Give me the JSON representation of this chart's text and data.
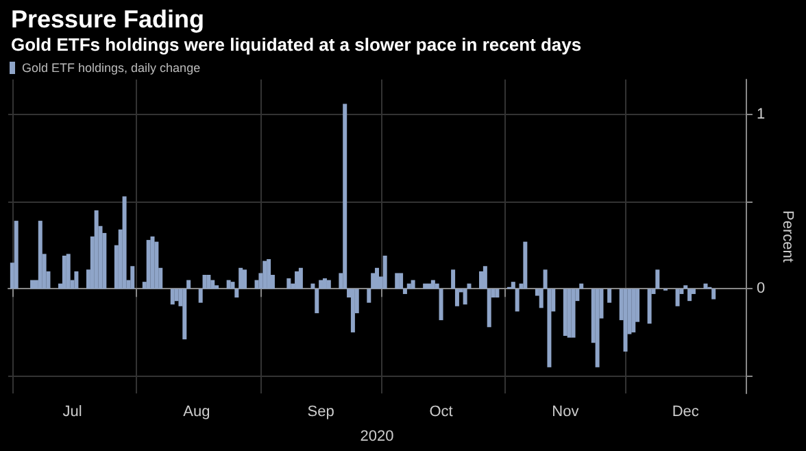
{
  "chart_data": {
    "type": "bar",
    "title": "Pressure Fading",
    "subtitle": "Gold ETFs holdings were liquidated at a slower pace in recent days",
    "xlabel": "2020",
    "ylabel": "Percent",
    "x": [
      "2020-07-01",
      "2020-07-02",
      "2020-07-06",
      "2020-07-07",
      "2020-07-08",
      "2020-07-09",
      "2020-07-10",
      "2020-07-13",
      "2020-07-14",
      "2020-07-15",
      "2020-07-16",
      "2020-07-17",
      "2020-07-20",
      "2020-07-21",
      "2020-07-22",
      "2020-07-23",
      "2020-07-24",
      "2020-07-27",
      "2020-07-28",
      "2020-07-29",
      "2020-07-30",
      "2020-07-31",
      "2020-08-03",
      "2020-08-04",
      "2020-08-05",
      "2020-08-06",
      "2020-08-07",
      "2020-08-10",
      "2020-08-11",
      "2020-08-12",
      "2020-08-13",
      "2020-08-14",
      "2020-08-17",
      "2020-08-18",
      "2020-08-19",
      "2020-08-20",
      "2020-08-21",
      "2020-08-24",
      "2020-08-25",
      "2020-08-26",
      "2020-08-27",
      "2020-08-28",
      "2020-08-31",
      "2020-09-01",
      "2020-09-02",
      "2020-09-03",
      "2020-09-04",
      "2020-09-08",
      "2020-09-09",
      "2020-09-10",
      "2020-09-11",
      "2020-09-14",
      "2020-09-15",
      "2020-09-16",
      "2020-09-17",
      "2020-09-18",
      "2020-09-21",
      "2020-09-22",
      "2020-09-23",
      "2020-09-24",
      "2020-09-25",
      "2020-09-28",
      "2020-09-29",
      "2020-09-30",
      "2020-10-01",
      "2020-10-02",
      "2020-10-05",
      "2020-10-06",
      "2020-10-07",
      "2020-10-08",
      "2020-10-09",
      "2020-10-12",
      "2020-10-13",
      "2020-10-14",
      "2020-10-15",
      "2020-10-16",
      "2020-10-19",
      "2020-10-20",
      "2020-10-21",
      "2020-10-22",
      "2020-10-23",
      "2020-10-26",
      "2020-10-27",
      "2020-10-28",
      "2020-10-29",
      "2020-10-30",
      "2020-11-02",
      "2020-11-03",
      "2020-11-04",
      "2020-11-05",
      "2020-11-06",
      "2020-11-09",
      "2020-11-10",
      "2020-11-11",
      "2020-11-12",
      "2020-11-13",
      "2020-11-16",
      "2020-11-17",
      "2020-11-18",
      "2020-11-19",
      "2020-11-20",
      "2020-11-23",
      "2020-11-24",
      "2020-11-25",
      "2020-11-27",
      "2020-11-30",
      "2020-12-01",
      "2020-12-02",
      "2020-12-03",
      "2020-12-04",
      "2020-12-07",
      "2020-12-08",
      "2020-12-09",
      "2020-12-10",
      "2020-12-11",
      "2020-12-14",
      "2020-12-15",
      "2020-12-16",
      "2020-12-17",
      "2020-12-18",
      "2020-12-21",
      "2020-12-22",
      "2020-12-23"
    ],
    "series": [
      {
        "name": "Gold ETF holdings, daily change",
        "color": "#8fa5c9",
        "values": [
          0.15,
          0.39,
          0.05,
          0.05,
          0.39,
          0.2,
          0.1,
          0.03,
          0.19,
          0.2,
          0.05,
          0.1,
          0.11,
          0.3,
          0.45,
          0.36,
          0.32,
          0.25,
          0.34,
          0.53,
          0.05,
          0.13,
          0.04,
          0.28,
          0.3,
          0.27,
          0.12,
          -0.09,
          -0.07,
          -0.1,
          -0.29,
          0.05,
          -0.08,
          0.08,
          0.08,
          0.05,
          0.02,
          0.05,
          0.04,
          -0.05,
          0.12,
          0.11,
          0.05,
          0.09,
          0.16,
          0.17,
          0.08,
          0.06,
          0.03,
          0.1,
          0.12,
          0.03,
          -0.14,
          0.05,
          0.06,
          0.05,
          0.09,
          1.06,
          -0.05,
          -0.25,
          -0.14,
          -0.08,
          0.09,
          0.12,
          0.07,
          0.19,
          0.09,
          0.09,
          -0.03,
          0.03,
          0.05,
          0.03,
          0.03,
          0.05,
          0.03,
          -0.18,
          0.11,
          -0.1,
          -0.02,
          -0.09,
          0.03,
          0.1,
          0.13,
          -0.22,
          -0.05,
          -0.05,
          0.01,
          0.04,
          -0.13,
          0.03,
          0.27,
          -0.04,
          -0.11,
          0.11,
          -0.45,
          -0.13,
          -0.27,
          -0.28,
          -0.28,
          -0.07,
          0.03,
          -0.31,
          -0.45,
          -0.17,
          -0.08,
          -0.18,
          -0.36,
          -0.26,
          -0.25,
          -0.19,
          -0.2,
          -0.03,
          0.11,
          null,
          -0.01,
          -0.1,
          -0.03,
          0.02,
          -0.07,
          -0.03,
          0.03,
          0.01,
          -0.06
        ]
      }
    ],
    "xlim": [
      "2020-06-30",
      "2020-12-31"
    ],
    "xticks": [
      {
        "value": "2020-07-01",
        "label": null
      },
      {
        "value": "2020-07-16",
        "label": "Jul"
      },
      {
        "value": "2020-08-01",
        "label": null
      },
      {
        "value": "2020-08-16",
        "label": "Aug"
      },
      {
        "value": "2020-09-01",
        "label": null
      },
      {
        "value": "2020-09-16",
        "label": "Sep"
      },
      {
        "value": "2020-10-01",
        "label": null
      },
      {
        "value": "2020-10-16",
        "label": "Oct"
      },
      {
        "value": "2020-11-01",
        "label": null
      },
      {
        "value": "2020-11-16",
        "label": "Nov"
      },
      {
        "value": "2020-12-01",
        "label": null
      },
      {
        "value": "2020-12-16",
        "label": "Dec"
      }
    ],
    "ylim": [
      -0.6,
      1.2
    ],
    "yticks": [
      {
        "value": -0.5,
        "label": null
      },
      0,
      {
        "value": 0.5,
        "label": null
      },
      1
    ],
    "grid": true,
    "legend": "top left"
  }
}
